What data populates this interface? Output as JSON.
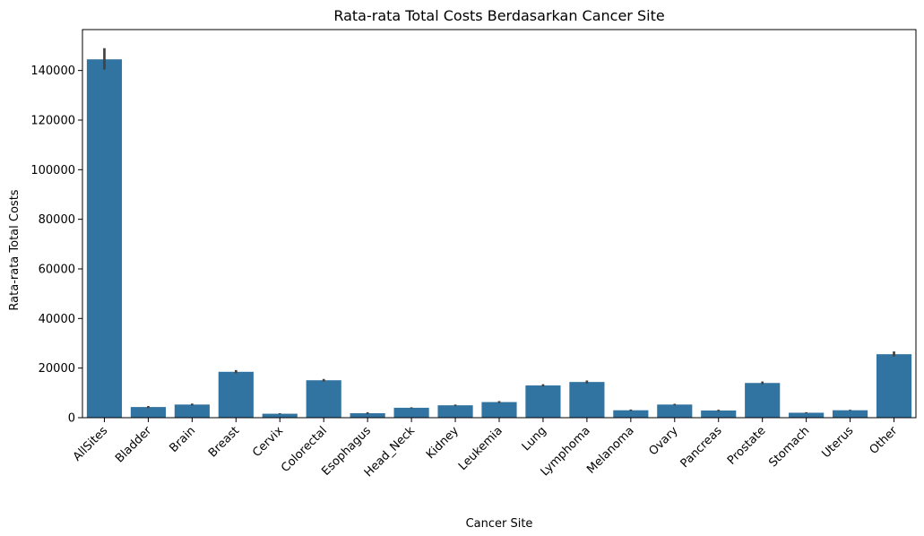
{
  "chart_data": {
    "type": "bar",
    "title": "Rata-rata Total Costs Berdasarkan Cancer Site",
    "xlabel": "Cancer Site",
    "ylabel": "Rata-rata Total Costs",
    "ylim": [
      0,
      156500
    ],
    "yticks": [
      0,
      20000,
      40000,
      60000,
      80000,
      100000,
      120000,
      140000
    ],
    "categories": [
      "AllSites",
      "Bladder",
      "Brain",
      "Breast",
      "Cervix",
      "Colorectal",
      "Esophagus",
      "Head_Neck",
      "Kidney",
      "Leukemia",
      "Lung",
      "Lymphoma",
      "Melanoma",
      "Ovary",
      "Pancreas",
      "Prostate",
      "Stomach",
      "Uterus",
      "Other"
    ],
    "values": [
      144500,
      4300,
      5300,
      18500,
      1600,
      15100,
      1800,
      4000,
      5000,
      6300,
      13000,
      14400,
      3000,
      5300,
      2900,
      14000,
      2000,
      3000,
      25600
    ],
    "error": [
      [
        140400,
        149000
      ],
      [
        3900,
        4700
      ],
      [
        4900,
        5700
      ],
      [
        17900,
        19200
      ],
      [
        1400,
        1800
      ],
      [
        14600,
        15600
      ],
      [
        1400,
        2200
      ],
      [
        3800,
        4200
      ],
      [
        4700,
        5300
      ],
      [
        5900,
        6700
      ],
      [
        12600,
        13500
      ],
      [
        13800,
        15000
      ],
      [
        2700,
        3300
      ],
      [
        5000,
        5600
      ],
      [
        2600,
        3200
      ],
      [
        13500,
        14600
      ],
      [
        1800,
        2200
      ],
      [
        2800,
        3200
      ],
      [
        24700,
        26700
      ]
    ],
    "bar_color": "#3274a1",
    "error_color": "#424242",
    "grid": false,
    "legend": "none"
  }
}
